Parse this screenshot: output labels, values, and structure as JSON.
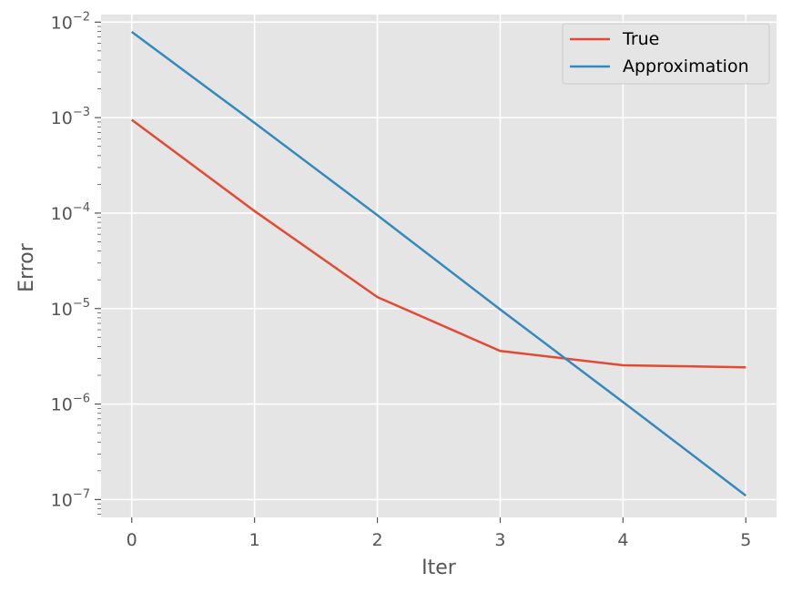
{
  "chart_data": {
    "type": "line",
    "title": "",
    "xlabel": "Iter",
    "ylabel": "Error",
    "x": [
      0,
      1,
      2,
      3,
      4,
      5
    ],
    "xlim": [
      -0.25,
      5.25
    ],
    "ylim": [
      6.5e-08,
      0.012
    ],
    "yscale": "log",
    "xticks": [
      0,
      1,
      2,
      3,
      4,
      5
    ],
    "yticks": [
      {
        "value": 1e-07,
        "base": "10",
        "exp": "−7"
      },
      {
        "value": 1e-06,
        "base": "10",
        "exp": "−6"
      },
      {
        "value": 1e-05,
        "base": "10",
        "exp": "−5"
      },
      {
        "value": 0.0001,
        "base": "10",
        "exp": "−4"
      },
      {
        "value": 0.001,
        "base": "10",
        "exp": "−3"
      },
      {
        "value": 0.01,
        "base": "10",
        "exp": "−2"
      }
    ],
    "grid": true,
    "legend_position": "top-right",
    "series": [
      {
        "name": "True",
        "color": "#E24A33",
        "values": [
          0.00095,
          0.000105,
          1.32e-05,
          3.6e-06,
          2.55e-06,
          2.43e-06
        ]
      },
      {
        "name": "Approximation",
        "color": "#348ABD",
        "values": [
          0.0079,
          0.00088,
          9.5e-05,
          9.8e-06,
          1.05e-06,
          1.1e-07
        ]
      }
    ]
  }
}
